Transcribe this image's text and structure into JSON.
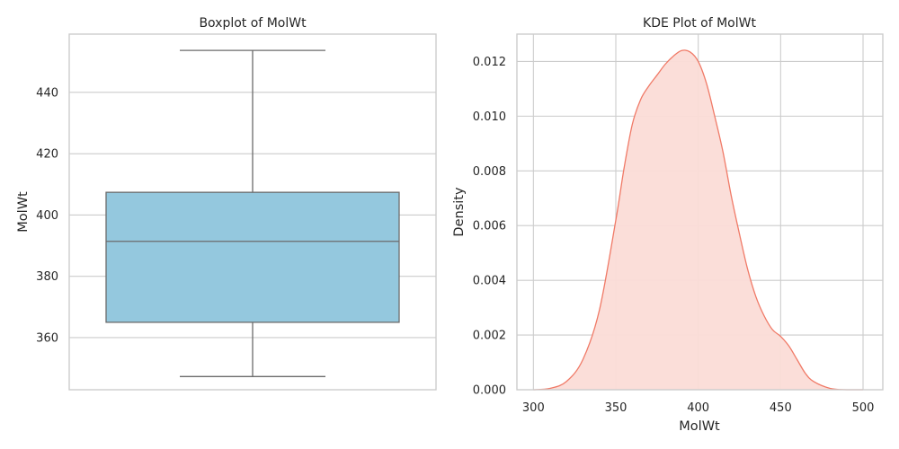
{
  "chart_data": [
    {
      "type": "box",
      "title": "Boxplot of MolWt",
      "xlabel": "",
      "ylabel": "MolWt",
      "ylim": [
        343,
        459
      ],
      "yticks": [
        360,
        380,
        400,
        420,
        440
      ],
      "grid": true,
      "box": {
        "whisker_low": 347.3,
        "q1": 365.0,
        "median": 391.4,
        "q3": 407.4,
        "whisker_high": 453.7
      },
      "colors": {
        "fill": "#94c8de",
        "line": "#6b6b6b"
      }
    },
    {
      "type": "area",
      "title": "KDE Plot of MolWt",
      "xlabel": "MolWt",
      "ylabel": "Density",
      "xlim": [
        290,
        512
      ],
      "ylim": [
        0,
        0.013
      ],
      "xticks": [
        300,
        350,
        400,
        450,
        500
      ],
      "yticks": [
        "0.000",
        "0.002",
        "0.004",
        "0.006",
        "0.008",
        "0.010",
        "0.012"
      ],
      "grid": true,
      "x": [
        300,
        310,
        320,
        330,
        340,
        350,
        355,
        360,
        365,
        370,
        375,
        380,
        385,
        390,
        395,
        400,
        405,
        410,
        415,
        420,
        425,
        430,
        435,
        440,
        445,
        450,
        455,
        460,
        465,
        470,
        480,
        490,
        500
      ],
      "y": [
        0.0,
        5e-05,
        0.0003,
        0.0011,
        0.0029,
        0.0062,
        0.0081,
        0.0097,
        0.0106,
        0.0111,
        0.0115,
        0.0119,
        0.0122,
        0.0124,
        0.01235,
        0.012,
        0.0112,
        0.01,
        0.0087,
        0.0071,
        0.0057,
        0.0044,
        0.0034,
        0.0027,
        0.0022,
        0.00195,
        0.0016,
        0.0011,
        0.0006,
        0.0003,
        5e-05,
        0.0,
        0.0
      ],
      "colors": {
        "line": "#f07a67",
        "fill": "#fbdcd7"
      }
    }
  ]
}
